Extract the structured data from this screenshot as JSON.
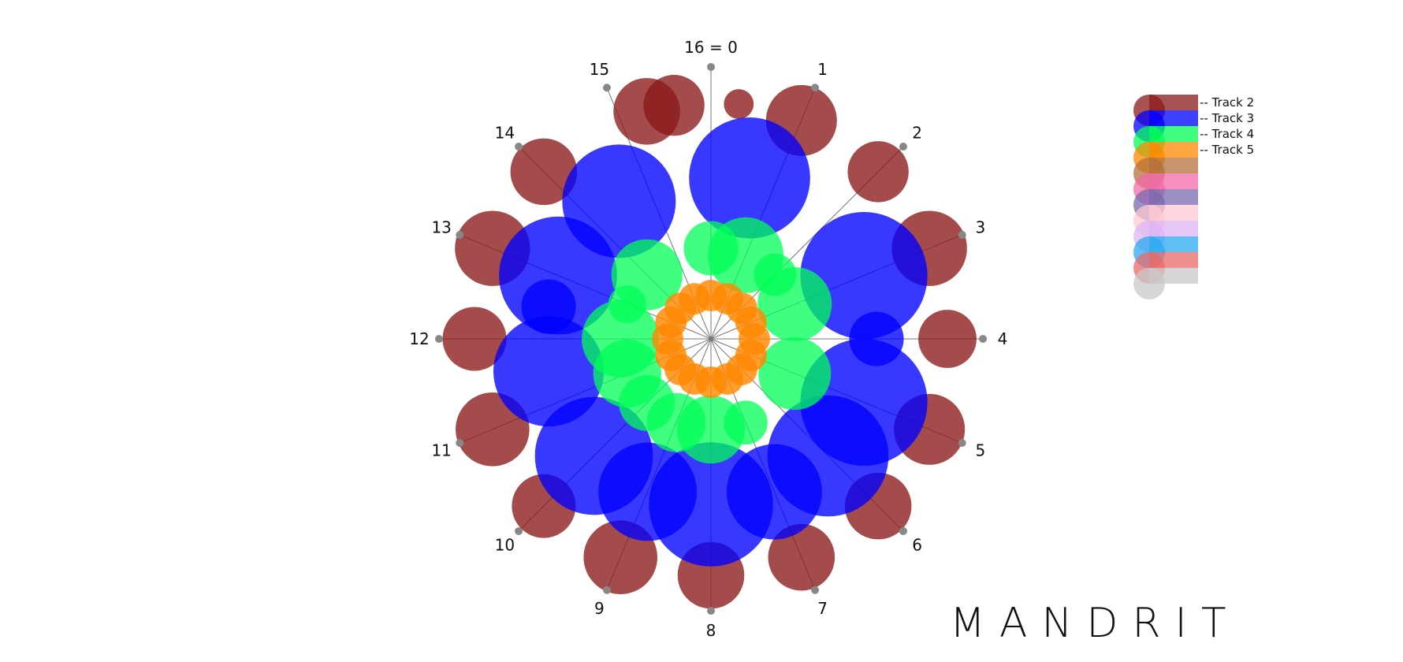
{
  "brand": "MANDRIT",
  "spokes": {
    "count": 16,
    "labels": [
      "16 = 0",
      "1",
      "2",
      "3",
      "4",
      "5",
      "6",
      "7",
      "8",
      "9",
      "10",
      "11",
      "12",
      "13",
      "14",
      "15"
    ]
  },
  "tracks": [
    {
      "name": "Track 2",
      "color": "#8b1a1a",
      "notes": [
        {
          "step": 0.3,
          "size": 0.42
        },
        {
          "step": 1.0,
          "size": 1.0
        },
        {
          "step": 2.0,
          "size": 0.86
        },
        {
          "step": 3.0,
          "size": 1.06
        },
        {
          "step": 4.0,
          "size": 0.82
        },
        {
          "step": 5.0,
          "size": 1.0
        },
        {
          "step": 6.0,
          "size": 0.94
        },
        {
          "step": 7.0,
          "size": 0.94
        },
        {
          "step": 8.0,
          "size": 0.94
        },
        {
          "step": 9.0,
          "size": 1.04
        },
        {
          "step": 10.0,
          "size": 0.9
        },
        {
          "step": 11.0,
          "size": 1.04
        },
        {
          "step": 12.0,
          "size": 0.9
        },
        {
          "step": 13.0,
          "size": 1.06
        },
        {
          "step": 14.0,
          "size": 0.94
        },
        {
          "step": 15.3,
          "size": 0.94
        },
        {
          "step": 15.6,
          "size": 0.86
        }
      ]
    },
    {
      "name": "Track 3",
      "color": "#0000ff",
      "notes": [
        {
          "step": 0.6,
          "size": 1.6
        },
        {
          "step": 3.0,
          "size": 1.68
        },
        {
          "step": 4.0,
          "size": 0.72
        },
        {
          "step": 5.0,
          "size": 1.68
        },
        {
          "step": 6.0,
          "size": 1.6
        },
        {
          "step": 7.0,
          "size": 1.26
        },
        {
          "step": 8.0,
          "size": 1.64
        },
        {
          "step": 9.0,
          "size": 1.3
        },
        {
          "step": 10.0,
          "size": 1.56
        },
        {
          "step": 11.5,
          "size": 1.46
        },
        {
          "step": 12.5,
          "size": 0.72
        },
        {
          "step": 13.0,
          "size": 1.56
        },
        {
          "step": 14.5,
          "size": 1.5
        }
      ]
    },
    {
      "name": "Track 4",
      "color": "#00ff55",
      "notes": [
        {
          "step": 0.0,
          "size": 0.72
        },
        {
          "step": 1.0,
          "size": 1.0
        },
        {
          "step": 2.0,
          "size": 0.56
        },
        {
          "step": 3.0,
          "size": 0.98
        },
        {
          "step": 5.0,
          "size": 0.96
        },
        {
          "step": 7.0,
          "size": 0.58
        },
        {
          "step": 8.0,
          "size": 0.9
        },
        {
          "step": 9.0,
          "size": 0.78
        },
        {
          "step": 10.0,
          "size": 0.74
        },
        {
          "step": 11.0,
          "size": 0.9
        },
        {
          "step": 12.0,
          "size": 1.02
        },
        {
          "step": 13.0,
          "size": 0.5
        },
        {
          "step": 14.0,
          "size": 0.94
        }
      ]
    },
    {
      "name": "Track 5",
      "color": "#ff8800",
      "notes": [
        {
          "step": 0.0,
          "size": 1.0
        },
        {
          "step": 1.0,
          "size": 1.0
        },
        {
          "step": 2.0,
          "size": 1.0
        },
        {
          "step": 3.0,
          "size": 1.0
        },
        {
          "step": 4.0,
          "size": 1.0
        },
        {
          "step": 5.0,
          "size": 1.0
        },
        {
          "step": 6.0,
          "size": 1.0
        },
        {
          "step": 7.0,
          "size": 1.0
        },
        {
          "step": 8.0,
          "size": 1.0
        },
        {
          "step": 9.0,
          "size": 1.0
        },
        {
          "step": 10.0,
          "size": 1.0
        },
        {
          "step": 11.0,
          "size": 1.0
        },
        {
          "step": 12.0,
          "size": 1.0
        },
        {
          "step": 13.0,
          "size": 1.0
        },
        {
          "step": 14.0,
          "size": 1.0
        },
        {
          "step": 15.0,
          "size": 1.0
        }
      ]
    }
  ],
  "palette": [
    "#8b1a1a",
    "#0000ff",
    "#00ff55",
    "#ff8800",
    "#b4703a",
    "#f06aa8",
    "#7a6ab0",
    "#ffc8d2",
    "#dcb4f6",
    "#2aaaf0",
    "#e86a6a",
    "#c8c8c8"
  ]
}
